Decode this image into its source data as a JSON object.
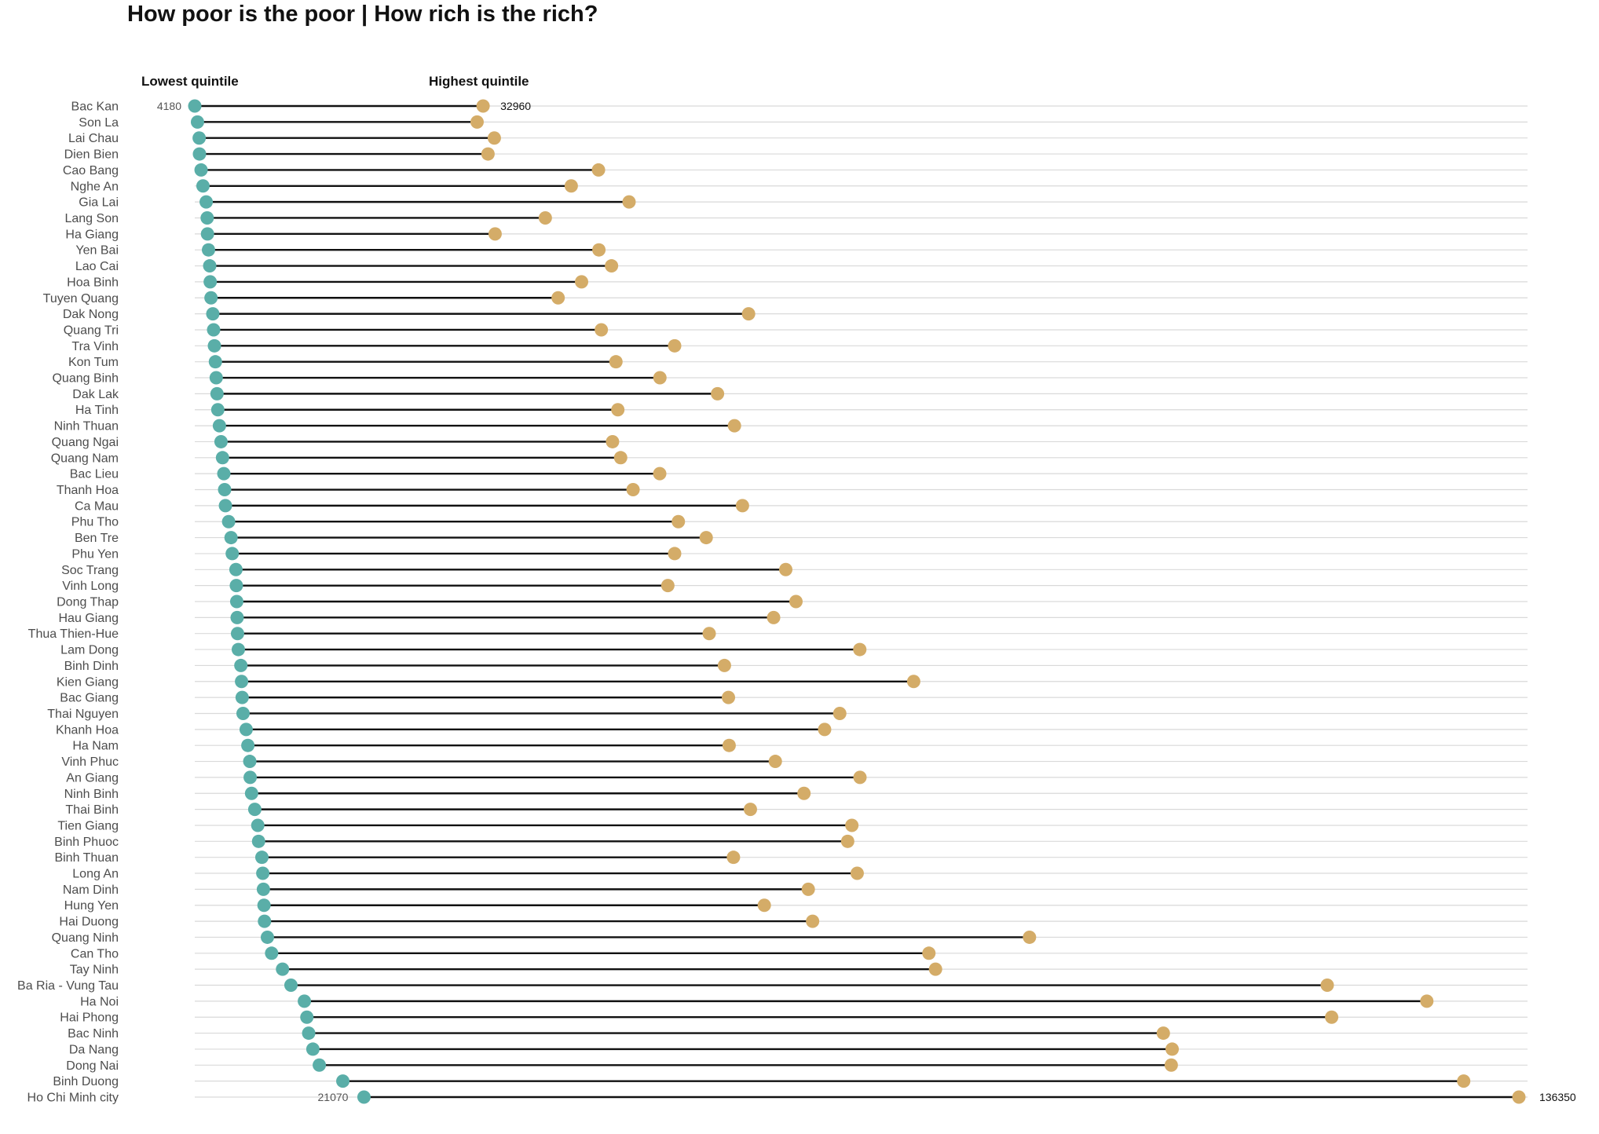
{
  "chart_data": {
    "type": "dumbbell",
    "title": "How poor is the poor | How rich is the rich?",
    "column_headers": {
      "low": "Lowest quintile",
      "high": "Highest quintile"
    },
    "xlim": [
      4180,
      136350
    ],
    "grid": "horizontal",
    "colors": {
      "low": "#5aaea8",
      "high": "#d4ac68",
      "connector": "#111111",
      "grid": "#d9d9d9"
    },
    "value_labels": [
      {
        "province": "Bac Kan",
        "low_label": "4180",
        "high_label": "32960"
      },
      {
        "province": "Ho Chi Minh city",
        "low_label": "21070",
        "high_label": "136350"
      }
    ],
    "rows": [
      {
        "province": "Bac Kan",
        "low": 4180,
        "high": 32960
      },
      {
        "province": "Son La",
        "low": 4450,
        "high": 32360
      },
      {
        "province": "Lai Chau",
        "low": 4620,
        "high": 34080
      },
      {
        "province": "Dien Bien",
        "low": 4650,
        "high": 33450
      },
      {
        "province": "Cao Bang",
        "low": 4810,
        "high": 44480
      },
      {
        "province": "Nghe An",
        "low": 5000,
        "high": 41760
      },
      {
        "province": "Gia Lai",
        "low": 5320,
        "high": 47530
      },
      {
        "province": "Lang Son",
        "low": 5420,
        "high": 39170
      },
      {
        "province": "Ha Giang",
        "low": 5450,
        "high": 34160
      },
      {
        "province": "Yen Bai",
        "low": 5550,
        "high": 44520
      },
      {
        "province": "Lao Cai",
        "low": 5670,
        "high": 45780
      },
      {
        "province": "Hoa Binh",
        "low": 5720,
        "high": 42790
      },
      {
        "province": "Tuyen Quang",
        "low": 5800,
        "high": 40450
      },
      {
        "province": "Dak Nong",
        "low": 5980,
        "high": 59460
      },
      {
        "province": "Quang Tri",
        "low": 6060,
        "high": 44760
      },
      {
        "province": "Tra Vinh",
        "low": 6140,
        "high": 52080
      },
      {
        "province": "Kon Tum",
        "low": 6240,
        "high": 46220
      },
      {
        "province": "Quang Binh",
        "low": 6320,
        "high": 50610
      },
      {
        "province": "Dak Lak",
        "low": 6400,
        "high": 56360
      },
      {
        "province": "Ha Tinh",
        "low": 6480,
        "high": 46410
      },
      {
        "province": "Ninh  Thuan",
        "low": 6640,
        "high": 58050
      },
      {
        "province": "Quang  Ngai",
        "low": 6800,
        "high": 45880
      },
      {
        "province": "Quang  Nam",
        "low": 6950,
        "high": 46690
      },
      {
        "province": "Bac Lieu",
        "low": 7080,
        "high": 50590
      },
      {
        "province": "Thanh Hoa",
        "low": 7160,
        "high": 47930
      },
      {
        "province": "Ca Mau",
        "low": 7240,
        "high": 58850
      },
      {
        "province": "Phu Tho",
        "low": 7560,
        "high": 52450
      },
      {
        "province": "Ben Tre",
        "low": 7800,
        "high": 55230
      },
      {
        "province": "Phu Yen",
        "low": 7920,
        "high": 52080
      },
      {
        "province": "Soc Trang",
        "low": 8290,
        "high": 63170
      },
      {
        "province": "Vinh Long",
        "low": 8330,
        "high": 51400
      },
      {
        "province": "Dong Thap",
        "low": 8370,
        "high": 64190
      },
      {
        "province": "Hau Giang",
        "low": 8410,
        "high": 61960
      },
      {
        "province": "Thua Thien-Hue",
        "low": 8450,
        "high": 55530
      },
      {
        "province": "Lam Dong",
        "low": 8530,
        "high": 70560
      },
      {
        "province": "Binh Dinh",
        "low": 8780,
        "high": 57050
      },
      {
        "province": "Kien  Giang",
        "low": 8850,
        "high": 75940
      },
      {
        "province": "Bac Giang",
        "low": 8910,
        "high": 57450
      },
      {
        "province": "Thai Nguyen",
        "low": 9000,
        "high": 68560
      },
      {
        "province": "Khanh  Hoa",
        "low": 9310,
        "high": 67050
      },
      {
        "province": "Ha Nam",
        "low": 9480,
        "high": 57520
      },
      {
        "province": "Vinh Phuc",
        "low": 9670,
        "high": 62130
      },
      {
        "province": "An Giang",
        "low": 9710,
        "high": 70580
      },
      {
        "province": "Ninh Binh",
        "low": 9850,
        "high": 64990
      },
      {
        "province": "Thai Binh",
        "low": 10170,
        "high": 59640
      },
      {
        "province": "Tien Giang",
        "low": 10470,
        "high": 69770
      },
      {
        "province": "Binh Phuoc",
        "low": 10550,
        "high": 69350
      },
      {
        "province": "Binh Thuan",
        "low": 10880,
        "high": 57950
      },
      {
        "province": "Long An",
        "low": 10970,
        "high": 70300
      },
      {
        "province": "Nam Dinh",
        "low": 11030,
        "high": 65420
      },
      {
        "province": "Hung Yen",
        "low": 11090,
        "high": 61030
      },
      {
        "province": "Hai Duong",
        "low": 11140,
        "high": 65850
      },
      {
        "province": "Quang Ninh",
        "low": 11430,
        "high": 87500
      },
      {
        "province": "Can Tho",
        "low": 11850,
        "high": 77460
      },
      {
        "province": "Tay Ninh",
        "low": 12940,
        "high": 78120
      },
      {
        "province": "Ba Ria - Vung Tau",
        "low": 13780,
        "high": 117220
      },
      {
        "province": "Ha Noi",
        "low": 15120,
        "high": 127160
      },
      {
        "province": "Hai Phong",
        "low": 15370,
        "high": 117660
      },
      {
        "province": "Bac Ninh",
        "low": 15550,
        "high": 100860
      },
      {
        "province": "Da Nang",
        "low": 15970,
        "high": 101740
      },
      {
        "province": "Dong Nai",
        "low": 16610,
        "high": 101650
      },
      {
        "province": "Binh Duong",
        "low": 18960,
        "high": 130840
      },
      {
        "province": "Ho Chi Minh city",
        "low": 21070,
        "high": 136350
      }
    ]
  }
}
